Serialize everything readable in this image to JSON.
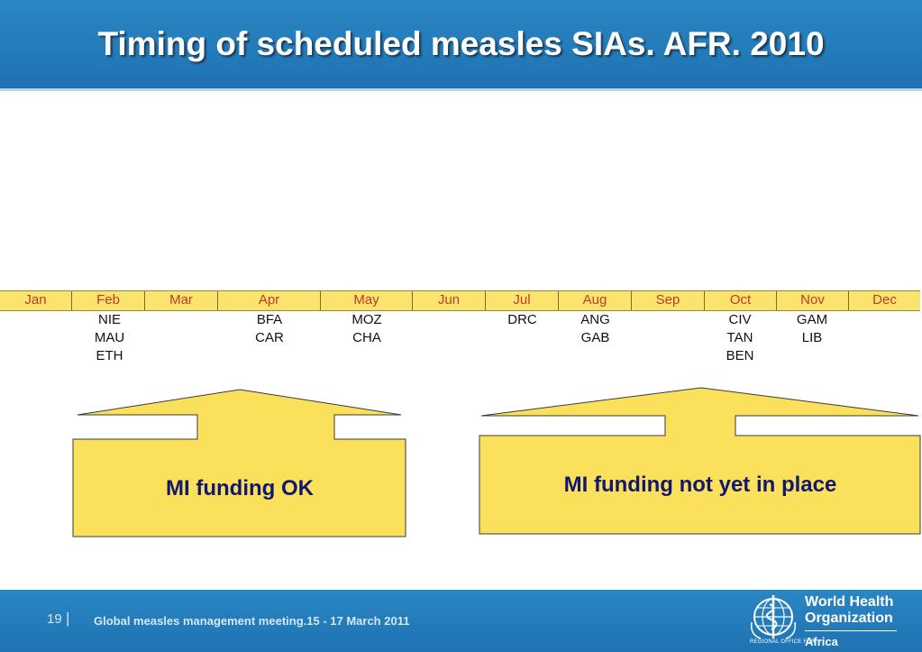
{
  "slide": {
    "title": "Timing of scheduled measles SIAs. AFR. 2010"
  },
  "timeline": {
    "months": [
      "Jan",
      "Feb",
      "Mar",
      "Apr",
      "May",
      "Jun",
      "Jul",
      "Aug",
      "Sep",
      "Oct",
      "Nov",
      "Dec"
    ],
    "columns": [
      {
        "month": "Feb",
        "countries": [
          "NIE",
          "MAU",
          "ETH"
        ]
      },
      {
        "month": "Apr",
        "countries": [
          "BFA",
          "CAR"
        ]
      },
      {
        "month": "May",
        "countries": [
          "MOZ",
          "CHA"
        ]
      },
      {
        "month": "Jul",
        "countries": [
          "DRC"
        ]
      },
      {
        "month": "Aug",
        "countries": [
          "ANG",
          "GAB"
        ]
      },
      {
        "month": "Oct",
        "countries": [
          "CIV",
          "TAN",
          "BEN"
        ]
      },
      {
        "month": "Nov",
        "countries": [
          "GAM",
          "LIB"
        ]
      }
    ]
  },
  "callouts": {
    "left_label": "MI funding OK",
    "right_label": "MI funding not yet in place"
  },
  "footer": {
    "page_number": "19",
    "separator": "|",
    "meeting": "Global measles management meeting.15 - 17 March 2011",
    "logo_line1": "World Health",
    "logo_line2": "Organization",
    "logo_regional": "REGIONAL OFFICE FOR",
    "logo_region": "Africa"
  },
  "colors": {
    "header_blue": "#1f73b3",
    "timeline_yellow": "#fbe46d",
    "month_text": "#c0392b",
    "callout_yellow": "#fbe15b",
    "callout_text": "#121870"
  },
  "icons": {
    "logo": "who-emblem-icon"
  }
}
